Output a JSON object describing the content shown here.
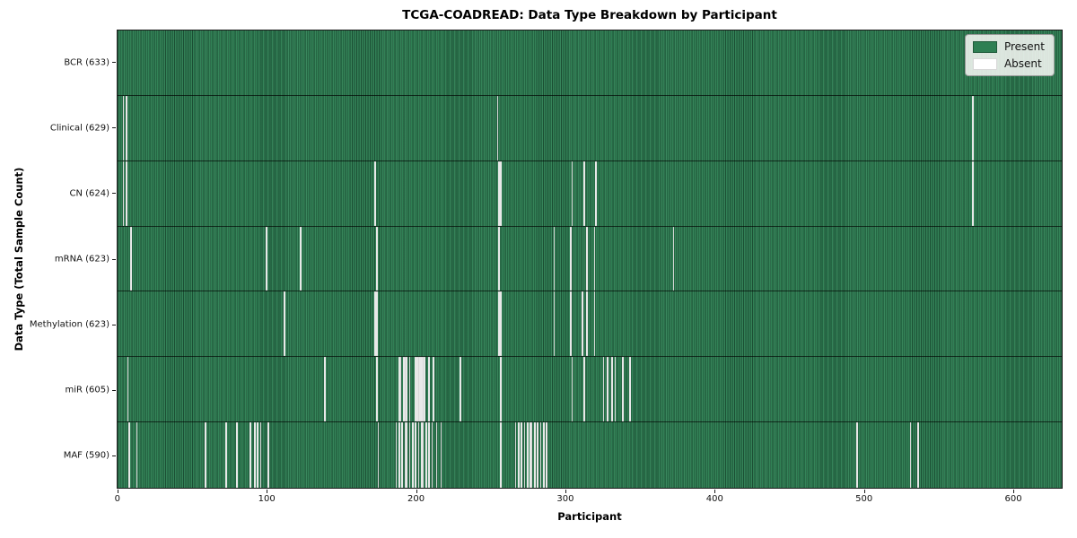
{
  "title": "TCGA-COADREAD: Data Type Breakdown by Participant",
  "xlabel": "Participant",
  "ylabel": "Data Type (Total Sample Count)",
  "legend": {
    "present_label": "Present",
    "absent_label": "Absent",
    "position": "upper right"
  },
  "colors": {
    "present": "#2e7f53",
    "absent": "#f8f8f8",
    "bar_edge": "#14331f",
    "axis": "#1a1a1a"
  },
  "x_ticks": [
    0,
    100,
    200,
    300,
    400,
    500,
    600
  ],
  "chart_data": {
    "type": "heatmap",
    "title": "TCGA-COADREAD: Data Type Breakdown by Participant",
    "xlabel": "Participant",
    "ylabel": "Data Type (Total Sample Count)",
    "n_participants": 633,
    "xlim": [
      -0.5,
      633
    ],
    "x_tick_values": [
      0,
      100,
      200,
      300,
      400,
      500,
      600
    ],
    "grid": false,
    "legend_position": "upper right",
    "states": {
      "present_color": "#2e7f53",
      "absent_color": "#ffffff"
    },
    "rows": [
      {
        "label": "BCR (633)",
        "data_type": "BCR",
        "present_count": 633,
        "absent_participants": []
      },
      {
        "label": "Clinical (629)",
        "data_type": "Clinical",
        "present_count": 629,
        "absent_participants": [
          3,
          5,
          254,
          573
        ]
      },
      {
        "label": "CN (624)",
        "data_type": "CN",
        "present_count": 624,
        "absent_participants": [
          3,
          5,
          172,
          255,
          256,
          304,
          312,
          320,
          573
        ]
      },
      {
        "label": "mRNA (623)",
        "data_type": "mRNA",
        "present_count": 623,
        "absent_participants": [
          8,
          99,
          122,
          173,
          255,
          292,
          303,
          314,
          319,
          372
        ]
      },
      {
        "label": "Methylation (623)",
        "data_type": "Methylation",
        "present_count": 623,
        "absent_participants": [
          111,
          172,
          173,
          255,
          256,
          292,
          303,
          311,
          314,
          319
        ]
      },
      {
        "label": "miR (605)",
        "data_type": "miR",
        "present_count": 605,
        "absent_participants": [
          6,
          138,
          173,
          188,
          189,
          191,
          192,
          193,
          195,
          199,
          200,
          201,
          202,
          203,
          204,
          205,
          208,
          211,
          229,
          256,
          304,
          312,
          325,
          328,
          331,
          333,
          338,
          343
        ]
      },
      {
        "label": "MAF (590)",
        "data_type": "MAF",
        "present_count": 590,
        "absent_participants": [
          7,
          12,
          58,
          72,
          79,
          88,
          91,
          93,
          95,
          100,
          174,
          186,
          188,
          190,
          192,
          193,
          195,
          197,
          199,
          201,
          203,
          204,
          206,
          208,
          210,
          213,
          216,
          256,
          266,
          268,
          270,
          272,
          274,
          276,
          277,
          279,
          281,
          283,
          285,
          287,
          495,
          531,
          536
        ]
      }
    ]
  }
}
